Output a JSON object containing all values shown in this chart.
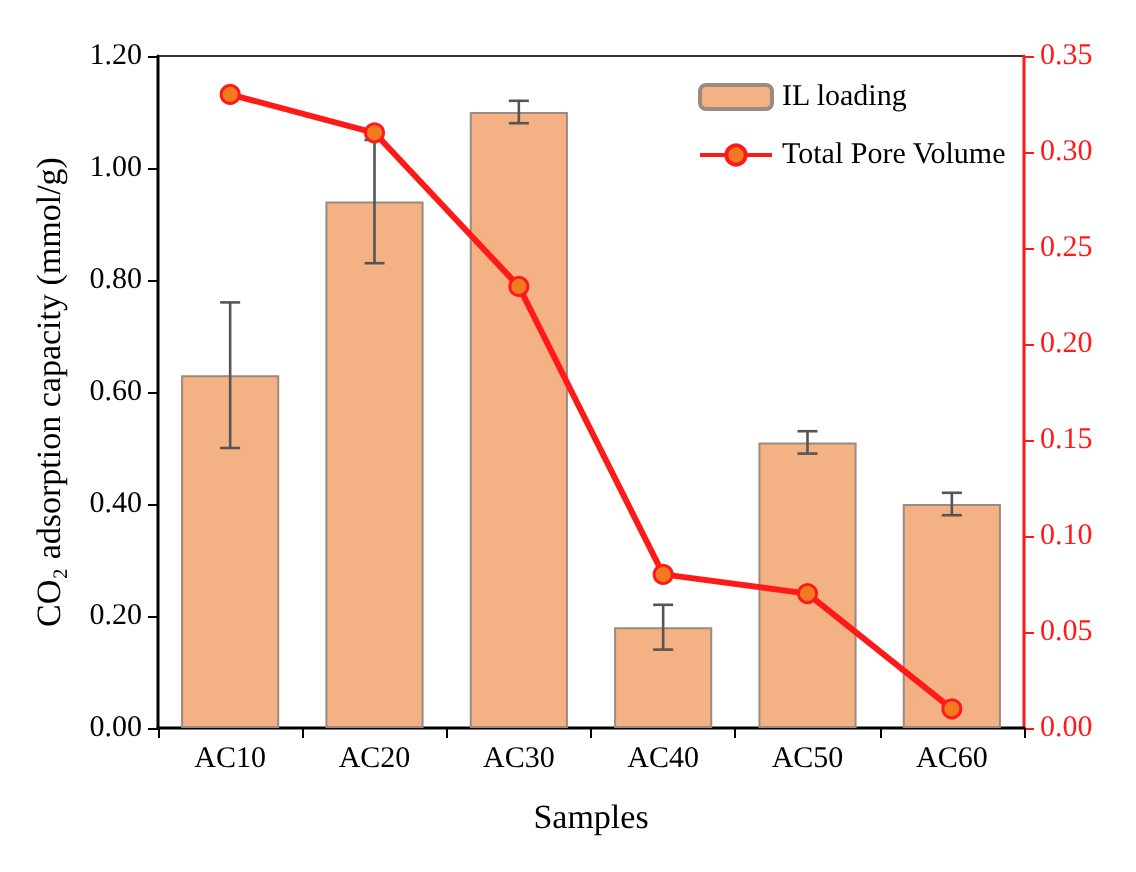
{
  "chart_data": {
    "type": "bar",
    "xlabel": "Samples",
    "ylabel": "CO₂ adsorption capacity (mmol/g)",
    "categories": [
      "AC10",
      "AC20",
      "AC30",
      "AC40",
      "AC50",
      "AC60"
    ],
    "series": [
      {
        "name": "IL loading",
        "color": "#f4b183",
        "values": [
          0.63,
          0.94,
          1.1,
          0.18,
          0.51,
          0.4
        ],
        "errors": [
          0.13,
          0.11,
          0.02,
          0.04,
          0.02,
          0.02
        ]
      },
      {
        "name": "Total Pore Volume",
        "type": "line",
        "axis": "y2",
        "color": "#ff1a1a",
        "marker": "circle",
        "values": [
          0.33,
          0.31,
          0.23,
          0.08,
          0.07,
          0.01
        ]
      }
    ],
    "ylim": [
      0,
      1.2
    ],
    "yticks": [
      {
        "value": 0,
        "label": "0.00"
      },
      {
        "value": 0.2,
        "label": "0.20"
      },
      {
        "value": 0.4,
        "label": "0.40"
      },
      {
        "value": 0.6,
        "label": "0.60"
      },
      {
        "value": 0.8,
        "label": "0.80"
      },
      {
        "value": 1,
        "label": "1.00"
      },
      {
        "value": 1.2,
        "label": "1.20"
      }
    ],
    "y2lim": [
      0,
      0.35
    ],
    "y2ticks": [
      {
        "value": 0,
        "label": "0.00"
      },
      {
        "value": 0.05,
        "label": "0.05"
      },
      {
        "value": 0.1,
        "label": "0.10"
      },
      {
        "value": 0.15,
        "label": "0.15"
      },
      {
        "value": 0.2,
        "label": "0.20"
      },
      {
        "value": 0.25,
        "label": "0.25"
      },
      {
        "value": 0.3,
        "label": "0.30"
      },
      {
        "value": 0.35,
        "label": "0.35"
      }
    ],
    "grid": false,
    "legend": "top right"
  }
}
